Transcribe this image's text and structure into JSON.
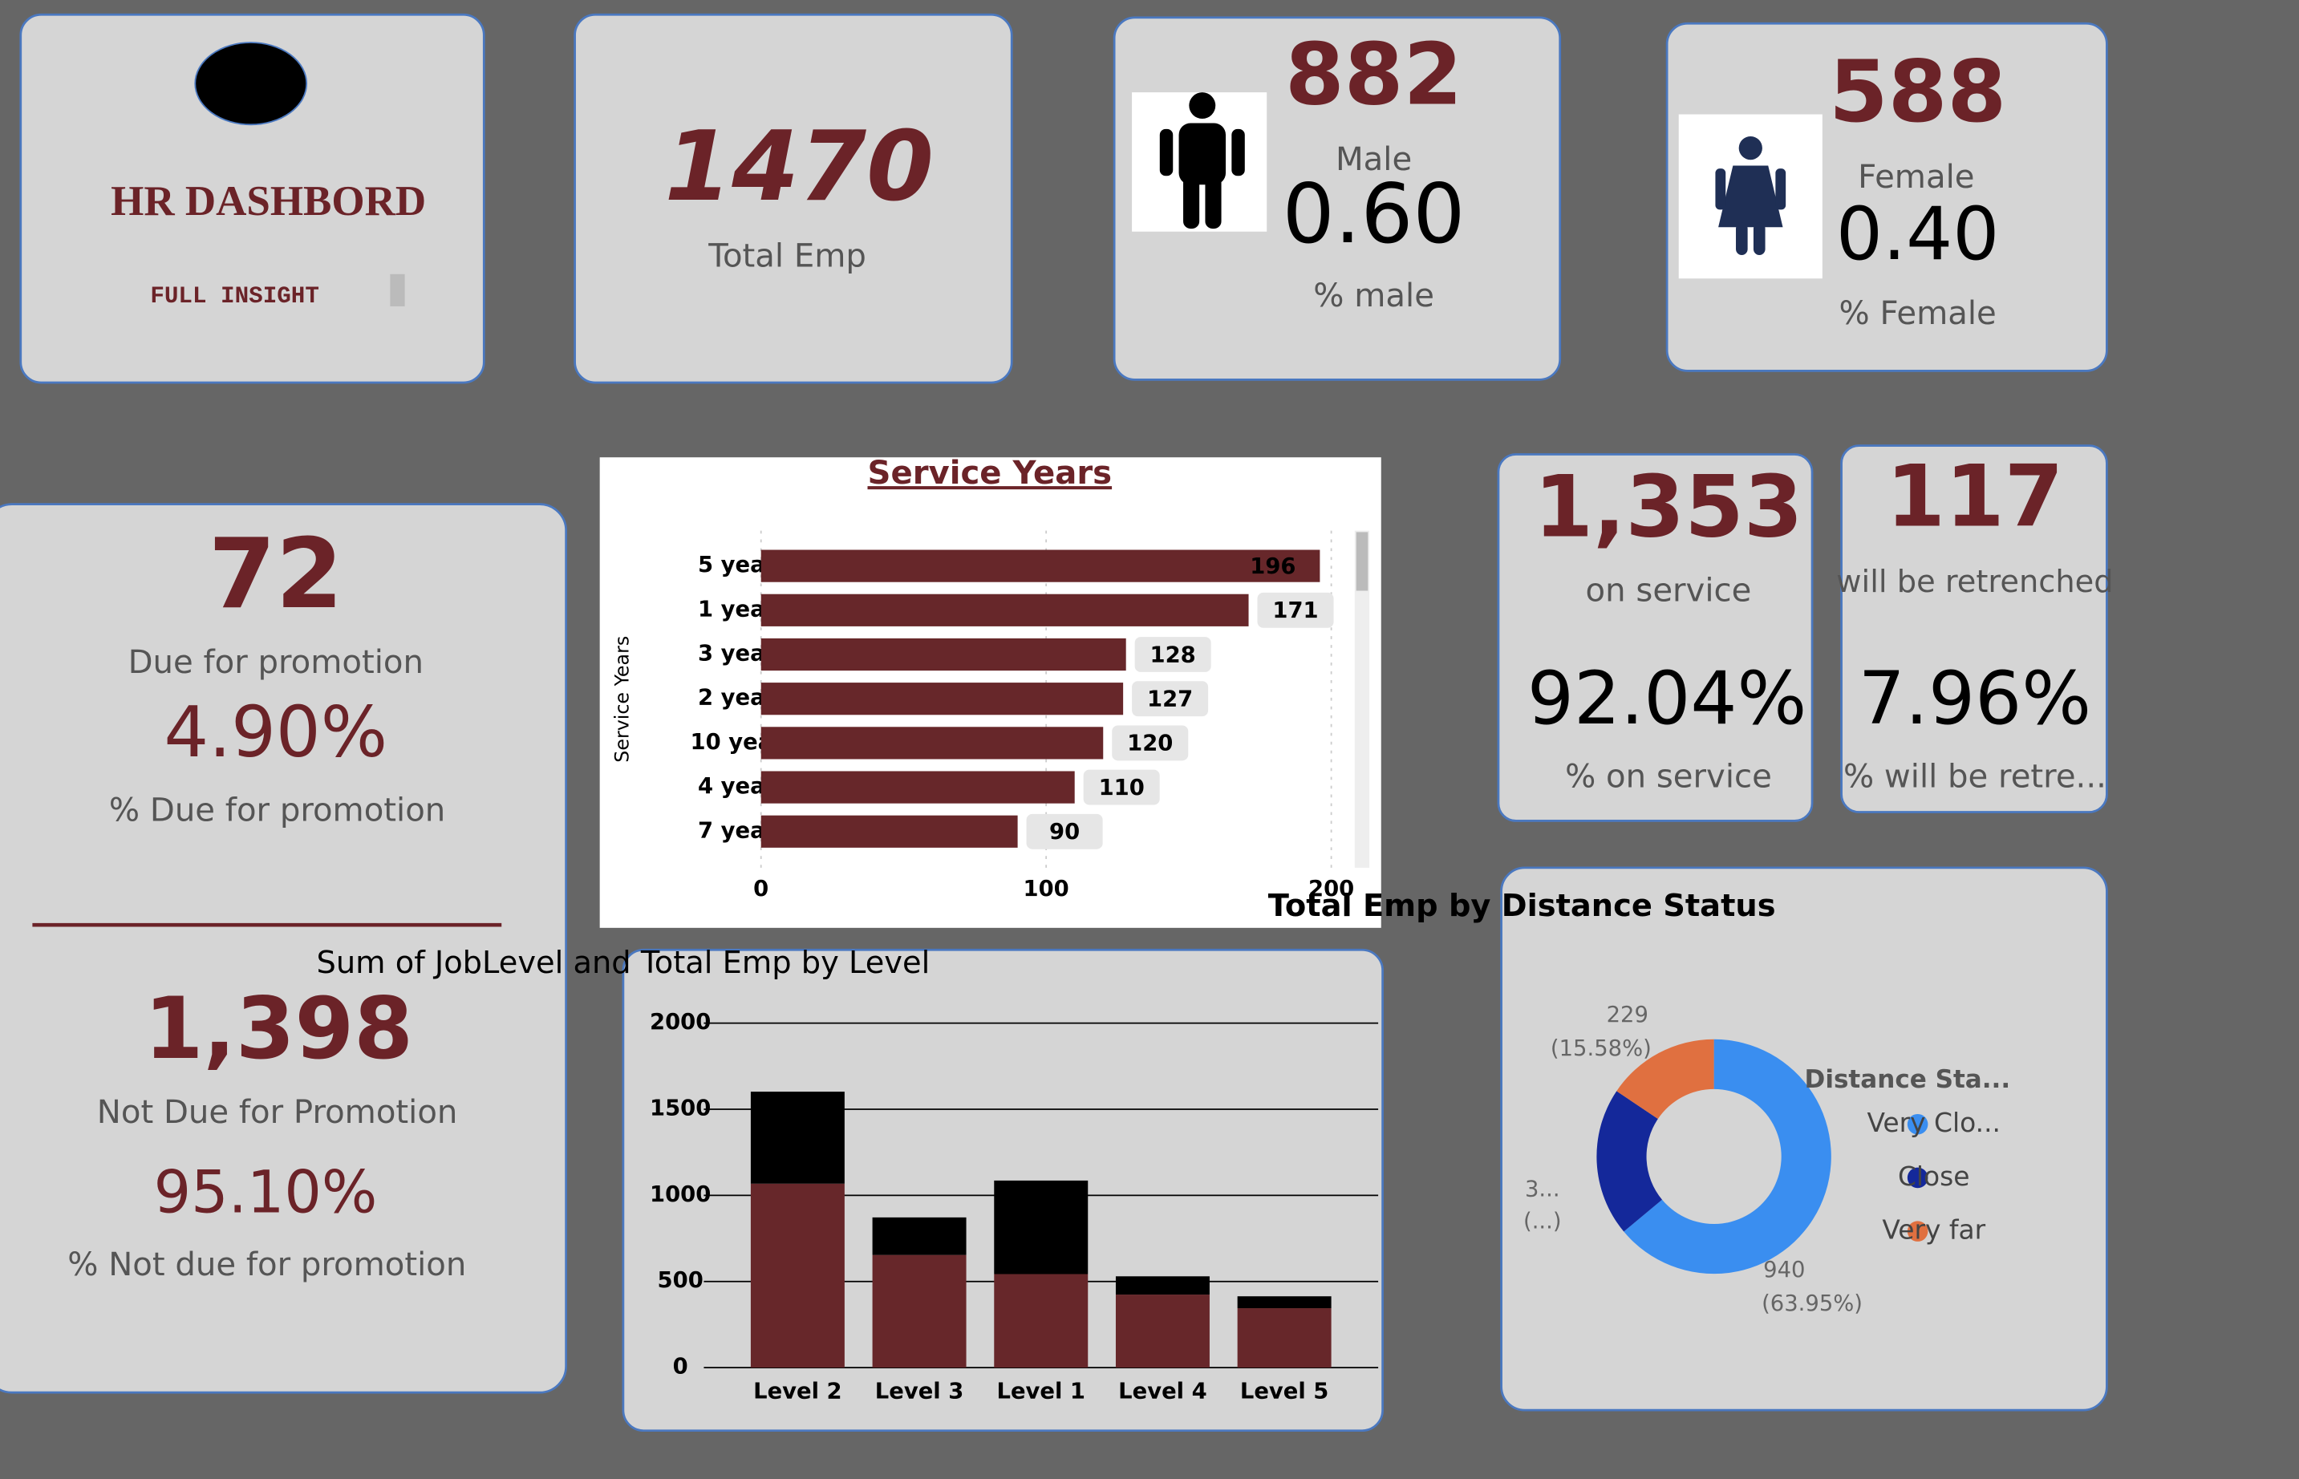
{
  "header": {
    "title": "HR DASHBORD",
    "subtitle": "FULL INSIGHT"
  },
  "kpis": {
    "total": {
      "value": "1470",
      "label": "Total Emp"
    },
    "male": {
      "count": "882",
      "label": "Male",
      "ratio": "0.60",
      "ratio_label": "% male"
    },
    "female": {
      "count": "588",
      "label": "Female",
      "ratio": "0.40",
      "ratio_label": "% Female"
    },
    "promotion": {
      "due": "72",
      "due_label": "Due for promotion",
      "due_pct": "4.90%",
      "due_pct_label": "% Due for promotion",
      "not_due": "1,398",
      "not_due_label": "Not Due for Promotion",
      "not_due_pct": "95.10%",
      "not_due_pct_label": "% Not due for promotion"
    },
    "service": {
      "count": "1,353",
      "label": "on service",
      "pct": "92.04%",
      "pct_label": "% on service"
    },
    "retrench": {
      "count": "117",
      "label": "will be retrenched",
      "pct": "7.96%",
      "pct_label": "% will be retre..."
    }
  },
  "chart_data": [
    {
      "type": "hbar",
      "title": "Service Years",
      "y_label": "Service Years",
      "categories": [
        "5 years",
        "1 years",
        "3 years",
        "2 years",
        "10 years",
        "4 years",
        "7 years"
      ],
      "values": [
        196,
        171,
        128,
        127,
        120,
        110,
        90
      ],
      "color": "#67272a",
      "xlim": [
        0,
        200
      ],
      "xticks": [
        0,
        100,
        200
      ]
    },
    {
      "type": "stacked_bar",
      "title": "Sum of JobLevel and Total Emp by Level",
      "categories": [
        "Level 2",
        "Level 3",
        "Level 1",
        "Level 4",
        "Level 5"
      ],
      "series": [
        {
          "color": "#67272a",
          "values": [
            1068,
            654,
            543,
            424,
            345
          ]
        },
        {
          "color": "#000000",
          "values": [
            534,
            218,
            543,
            106,
            69
          ]
        }
      ],
      "ylim": [
        0,
        2000
      ],
      "yticks": [
        0,
        500,
        1000,
        1500,
        2000
      ],
      "grid": true
    },
    {
      "type": "donut",
      "title": "Total Emp by Distance Status",
      "legend_title": "Distance Sta...",
      "categories": [
        "Very Clo...",
        "Close",
        "Very far"
      ],
      "values": [
        940,
        301,
        229
      ],
      "value_labels": [
        [
          "940",
          "(63.95%)"
        ],
        [
          "3...",
          "(...)"
        ],
        [
          "229",
          "(15.58%)"
        ]
      ],
      "colors": [
        "#3a8ef0",
        "#14289a",
        "#e07040"
      ]
    }
  ]
}
